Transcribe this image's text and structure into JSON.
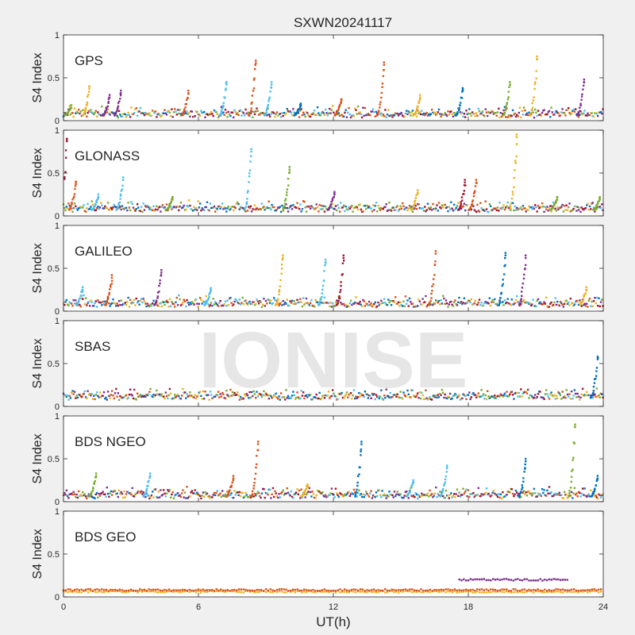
{
  "title": "SXWN20241117",
  "watermark": "IONISE",
  "background_color": "#f0f0f0",
  "axes_color": "#ffffff",
  "series_colors": [
    "#0072BD",
    "#D95319",
    "#EDB120",
    "#7E2F8E",
    "#77AC30",
    "#4DBEEE",
    "#A2142F"
  ],
  "chart_data": [
    {
      "type": "scatter",
      "panel_label": "GPS",
      "ylabel": "S4 Index",
      "xlabel": "",
      "ylim": [
        0,
        1
      ],
      "xlim": [
        0,
        24
      ],
      "yticks": [
        0,
        0.5,
        1
      ],
      "yticklabels": [
        "0",
        "0.5",
        "1"
      ],
      "baseline": 0.06,
      "spikes": [
        {
          "x": 0.3,
          "peak": 0.18,
          "series": 4
        },
        {
          "x": 1.1,
          "peak": 0.4,
          "series": 2
        },
        {
          "x": 2.0,
          "peak": 0.3,
          "series": 3
        },
        {
          "x": 2.5,
          "peak": 0.35,
          "series": 3
        },
        {
          "x": 5.5,
          "peak": 0.35,
          "series": 1
        },
        {
          "x": 7.2,
          "peak": 0.45,
          "series": 5
        },
        {
          "x": 8.5,
          "peak": 0.7,
          "series": 1
        },
        {
          "x": 9.2,
          "peak": 0.45,
          "series": 5
        },
        {
          "x": 10.5,
          "peak": 0.2,
          "series": 0
        },
        {
          "x": 12.3,
          "peak": 0.25,
          "series": 1
        },
        {
          "x": 14.2,
          "peak": 0.68,
          "series": 1
        },
        {
          "x": 15.8,
          "peak": 0.3,
          "series": 2
        },
        {
          "x": 17.7,
          "peak": 0.38,
          "series": 0
        },
        {
          "x": 19.8,
          "peak": 0.45,
          "series": 4
        },
        {
          "x": 21.0,
          "peak": 0.75,
          "series": 2
        },
        {
          "x": 23.1,
          "peak": 0.48,
          "series": 3
        }
      ]
    },
    {
      "type": "scatter",
      "panel_label": "GLONASS",
      "ylabel": "S4 Index",
      "xlabel": "",
      "ylim": [
        0,
        1
      ],
      "xlim": [
        0,
        24
      ],
      "yticks": [
        0,
        0.5,
        1
      ],
      "yticklabels": [
        "0",
        "0.5",
        "1"
      ],
      "baseline": 0.07,
      "spikes": [
        {
          "x": 0.1,
          "peak": 0.9,
          "series": 6
        },
        {
          "x": 0.5,
          "peak": 0.4,
          "series": 1
        },
        {
          "x": 1.5,
          "peak": 0.25,
          "series": 5
        },
        {
          "x": 2.6,
          "peak": 0.45,
          "series": 5
        },
        {
          "x": 4.8,
          "peak": 0.22,
          "series": 4
        },
        {
          "x": 8.3,
          "peak": 0.78,
          "series": 5
        },
        {
          "x": 10.0,
          "peak": 0.57,
          "series": 4
        },
        {
          "x": 12.0,
          "peak": 0.28,
          "series": 3
        },
        {
          "x": 15.7,
          "peak": 0.3,
          "series": 2
        },
        {
          "x": 17.8,
          "peak": 0.42,
          "series": 6
        },
        {
          "x": 18.3,
          "peak": 0.42,
          "series": 1
        },
        {
          "x": 20.1,
          "peak": 0.95,
          "series": 2
        },
        {
          "x": 21.9,
          "peak": 0.22,
          "series": 4
        },
        {
          "x": 23.8,
          "peak": 0.22,
          "series": 4
        }
      ]
    },
    {
      "type": "scatter",
      "panel_label": "GALILEO",
      "ylabel": "S4 Index",
      "xlabel": "",
      "ylim": [
        0,
        1
      ],
      "xlim": [
        0,
        24
      ],
      "yticks": [
        0,
        0.5,
        1
      ],
      "yticklabels": [
        "0",
        "0.5",
        "1"
      ],
      "baseline": 0.07,
      "spikes": [
        {
          "x": 0.8,
          "peak": 0.28,
          "series": 5
        },
        {
          "x": 2.1,
          "peak": 0.42,
          "series": 1
        },
        {
          "x": 4.3,
          "peak": 0.48,
          "series": 3
        },
        {
          "x": 6.5,
          "peak": 0.27,
          "series": 5
        },
        {
          "x": 9.7,
          "peak": 0.65,
          "series": 2
        },
        {
          "x": 11.6,
          "peak": 0.6,
          "series": 5
        },
        {
          "x": 12.4,
          "peak": 0.65,
          "series": 6
        },
        {
          "x": 16.5,
          "peak": 0.7,
          "series": 1
        },
        {
          "x": 19.6,
          "peak": 0.68,
          "series": 0
        },
        {
          "x": 20.5,
          "peak": 0.65,
          "series": 3
        },
        {
          "x": 23.2,
          "peak": 0.28,
          "series": 2
        }
      ]
    },
    {
      "type": "scatter",
      "panel_label": "SBAS",
      "ylabel": "S4 Index",
      "xlabel": "",
      "ylim": [
        0,
        1
      ],
      "xlim": [
        0,
        24
      ],
      "yticks": [
        0,
        0.5,
        1
      ],
      "yticklabels": [
        "0",
        "0.5",
        "1"
      ],
      "baseline": 0.1,
      "spikes": [
        {
          "x": 23.7,
          "peak": 0.58,
          "series": 0
        }
      ]
    },
    {
      "type": "scatter",
      "panel_label": "BDS NGEO",
      "ylabel": "S4 Index",
      "xlabel": "",
      "ylim": [
        0,
        1
      ],
      "xlim": [
        0,
        24
      ],
      "yticks": [
        0,
        0.5,
        1
      ],
      "yticklabels": [
        "0",
        "0.5",
        "1"
      ],
      "baseline": 0.06,
      "spikes": [
        {
          "x": 1.4,
          "peak": 0.33,
          "series": 4
        },
        {
          "x": 3.8,
          "peak": 0.33,
          "series": 5
        },
        {
          "x": 7.5,
          "peak": 0.3,
          "series": 1
        },
        {
          "x": 8.6,
          "peak": 0.7,
          "series": 1
        },
        {
          "x": 10.8,
          "peak": 0.2,
          "series": 2
        },
        {
          "x": 13.2,
          "peak": 0.7,
          "series": 0
        },
        {
          "x": 15.5,
          "peak": 0.25,
          "series": 5
        },
        {
          "x": 17.0,
          "peak": 0.42,
          "series": 5
        },
        {
          "x": 20.5,
          "peak": 0.5,
          "series": 0
        },
        {
          "x": 22.7,
          "peak": 0.9,
          "series": 4
        },
        {
          "x": 23.7,
          "peak": 0.3,
          "series": 0
        }
      ]
    },
    {
      "type": "scatter",
      "panel_label": "BDS GEO",
      "ylabel": "S4 Index",
      "xlabel": "UT(h)",
      "ylim": [
        0,
        1
      ],
      "xlim": [
        0,
        24
      ],
      "xticks": [
        0,
        6,
        12,
        18,
        24
      ],
      "xticklabels": [
        "0",
        "6",
        "12",
        "18",
        "24"
      ],
      "yticks": [
        0,
        0.5,
        1
      ],
      "yticklabels": [
        "0",
        "0.5",
        "1"
      ],
      "bands": [
        {
          "series": 2,
          "from": 0,
          "to": 24,
          "value": 0.06
        },
        {
          "series": 1,
          "from": 0,
          "to": 24,
          "value": 0.08
        },
        {
          "series": 3,
          "from": 17.6,
          "to": 22.5,
          "value": 0.2
        }
      ]
    }
  ]
}
